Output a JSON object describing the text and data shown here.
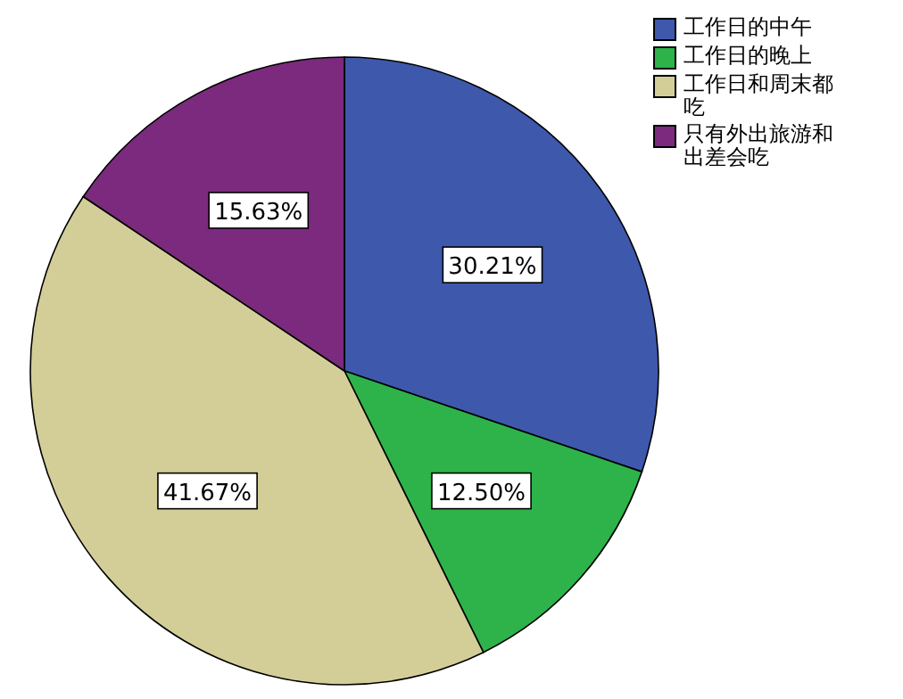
{
  "chart_data": {
    "type": "pie",
    "categories": [
      "工作日的中午",
      "工作日的晚上",
      "工作日和周末都吃",
      "只有外出旅游和出差会吃"
    ],
    "values": [
      30.21,
      12.5,
      41.67,
      15.63
    ],
    "colors": [
      "#3e58ac",
      "#2db34a",
      "#d3ce97",
      "#7b2a7e"
    ],
    "value_labels": [
      "30.21%",
      "12.50%",
      "41.67%",
      "15.63%"
    ],
    "legend": "top right"
  }
}
